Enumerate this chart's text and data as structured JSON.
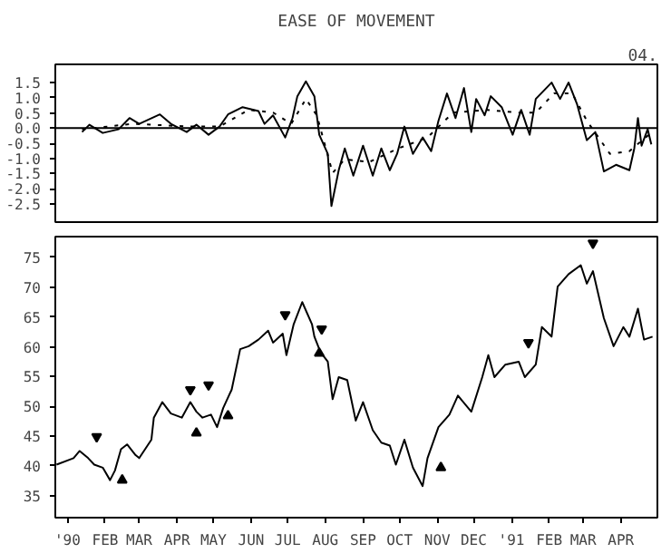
{
  "chart_data": [
    {
      "type": "line",
      "title": "EASE OF MOVEMENT",
      "annotations": [
        "04."
      ],
      "xlim": [
        "1989-12-22",
        "1991-05-01"
      ],
      "xticks": [
        {
          "value": "1990-01-01",
          "label": null
        },
        {
          "value": "1990-02-01",
          "label": null
        },
        {
          "value": "1990-03-01",
          "label": null
        },
        {
          "value": "1990-04-01",
          "label": null
        },
        {
          "value": "1990-05-01",
          "label": null
        },
        {
          "value": "1990-06-01",
          "label": null
        },
        {
          "value": "1990-07-01",
          "label": null
        },
        {
          "value": "1990-08-01",
          "label": null
        },
        {
          "value": "1990-09-01",
          "label": null
        },
        {
          "value": "1990-10-01",
          "label": null
        },
        {
          "value": "1990-11-01",
          "label": null
        },
        {
          "value": "1990-12-01",
          "label": null
        },
        {
          "value": "1991-01-01",
          "label": null
        },
        {
          "value": "1991-02-01",
          "label": null
        },
        {
          "value": "1991-03-01",
          "label": null
        },
        {
          "value": "1991-04-01",
          "label": null
        }
      ],
      "tick_labels": "y",
      "ylim": [
        -3.1,
        2.1
      ],
      "yticks": [
        {
          "value": 1.5,
          "label": "1.5"
        },
        {
          "value": 1,
          "label": "1.0"
        },
        {
          "value": 0.5,
          "label": "0.5"
        },
        {
          "value": 0,
          "label": "0.0"
        },
        {
          "value": -0.5,
          "label": "-0.5"
        },
        {
          "value": -1,
          "label": "-1.0"
        },
        {
          "value": -1.5,
          "label": "-1.5"
        },
        {
          "value": -2,
          "label": "-2.0"
        },
        {
          "value": -2.5,
          "label": "-2.5"
        }
      ],
      "grid": false,
      "ref_lines": [
        {
          "axis": "y",
          "value": 0,
          "color": "#000000"
        }
      ],
      "series": [
        {
          "color": "#000000",
          "line_style": "solid",
          "x": [
            "1990-01-13",
            "1990-01-19",
            "1990-01-30",
            "1990-02-12",
            "1990-02-21",
            "1990-03-01",
            "1990-03-18",
            "1990-03-27",
            "1990-04-09",
            "1990-04-17",
            "1990-04-27",
            "1990-05-06",
            "1990-05-13",
            "1990-05-25",
            "1990-06-07",
            "1990-06-12",
            "1990-06-19",
            "1990-06-29",
            "1990-07-05",
            "1990-07-09",
            "1990-07-16",
            "1990-07-23",
            "1990-07-27",
            "1990-08-03",
            "1990-08-06",
            "1990-08-12",
            "1990-08-17",
            "1990-08-24",
            "1990-09-01",
            "1990-09-09",
            "1990-09-16",
            "1990-09-23",
            "1990-09-29",
            "1990-10-05",
            "1990-10-12",
            "1990-10-20",
            "1990-10-27",
            "1990-11-02",
            "1990-11-09",
            "1990-11-16",
            "1990-11-23",
            "1990-11-29",
            "1990-12-03",
            "1990-12-10",
            "1990-12-15",
            "1990-12-24",
            "1991-01-02",
            "1991-01-09",
            "1991-01-16",
            "1991-01-21",
            "1991-02-03",
            "1991-02-10",
            "1991-02-17",
            "1991-02-24",
            "1991-03-04",
            "1991-03-11",
            "1991-03-18",
            "1991-03-28",
            "1991-04-08",
            "1991-04-12",
            "1991-04-15",
            "1991-04-18",
            "1991-04-23",
            "1991-04-26"
          ],
          "values": [
            -0.13,
            0.11,
            -0.16,
            -0.04,
            0.33,
            0.14,
            0.45,
            0.14,
            -0.13,
            0.11,
            -0.22,
            0.05,
            0.45,
            0.69,
            0.56,
            0.14,
            0.42,
            -0.31,
            0.33,
            1.05,
            1.54,
            1.05,
            -0.22,
            -0.85,
            -2.57,
            -1.39,
            -0.67,
            -1.57,
            -0.58,
            -1.57,
            -0.67,
            -1.39,
            -0.85,
            0.05,
            -0.85,
            -0.31,
            -0.76,
            0.24,
            1.14,
            0.33,
            1.32,
            -0.13,
            0.96,
            0.42,
            1.05,
            0.69,
            -0.22,
            0.6,
            -0.22,
            0.96,
            1.5,
            0.96,
            1.5,
            0.78,
            -0.4,
            -0.13,
            -1.43,
            -1.21,
            -1.39,
            -0.67,
            0.33,
            -0.58,
            -0.04,
            -0.54
          ]
        },
        {
          "color": "#000000",
          "line_style": "dotted",
          "x": [
            "1990-01-13",
            "1990-02-24",
            "1990-04-12",
            "1990-05-06",
            "1990-05-30",
            "1990-06-19",
            "1990-07-04",
            "1990-07-16",
            "1990-07-25",
            "1990-08-07",
            "1990-08-17",
            "1990-09-06",
            "1990-09-30",
            "1990-10-24",
            "1990-11-14",
            "1990-12-12",
            "1991-01-06",
            "1991-01-21",
            "1991-02-05",
            "1991-02-20",
            "1991-03-04",
            "1991-03-23",
            "1991-04-08",
            "1991-04-24"
          ],
          "values": [
            -0.04,
            0.14,
            0.05,
            0.05,
            0.6,
            0.51,
            0.14,
            0.96,
            0.42,
            -1.48,
            -1.03,
            -1.12,
            -0.67,
            -0.31,
            0.51,
            0.6,
            0.51,
            0.51,
            1.14,
            1.14,
            0.24,
            -0.85,
            -0.76,
            -0.22
          ]
        }
      ]
    },
    {
      "type": "line",
      "xlim": [
        "1989-12-22",
        "1991-05-01"
      ],
      "xticks": [
        {
          "value": "1990-01-01",
          "label": "'90"
        },
        {
          "value": "1990-02-01",
          "label": "FEB"
        },
        {
          "value": "1990-03-01",
          "label": "MAR"
        },
        {
          "value": "1990-04-01",
          "label": "APR"
        },
        {
          "value": "1990-05-01",
          "label": "MAY"
        },
        {
          "value": "1990-06-01",
          "label": "JUN"
        },
        {
          "value": "1990-07-01",
          "label": "JUL"
        },
        {
          "value": "1990-08-01",
          "label": "AUG"
        },
        {
          "value": "1990-09-01",
          "label": "SEP"
        },
        {
          "value": "1990-10-01",
          "label": "OCT"
        },
        {
          "value": "1990-11-01",
          "label": "NOV"
        },
        {
          "value": "1990-12-01",
          "label": "DEC"
        },
        {
          "value": "1991-01-01",
          "label": "'91"
        },
        {
          "value": "1991-02-01",
          "label": "FEB"
        },
        {
          "value": "1991-03-01",
          "label": "MAR"
        },
        {
          "value": "1991-04-01",
          "label": "APR"
        }
      ],
      "ylim": [
        31.3,
        78.5
      ],
      "yticks": [
        35,
        40,
        45,
        50,
        55,
        60,
        65,
        70,
        75
      ],
      "grid": false,
      "series": [
        {
          "color": "#000000",
          "line_style": "solid",
          "x": [
            "1989-12-23",
            "1990-01-06",
            "1990-01-11",
            "1990-01-18",
            "1990-01-23",
            "1990-01-30",
            "1990-02-05",
            "1990-02-09",
            "1990-02-14",
            "1990-02-19",
            "1990-02-26",
            "1990-03-01",
            "1990-03-11",
            "1990-03-13",
            "1990-03-20",
            "1990-03-27",
            "1990-04-05",
            "1990-04-12",
            "1990-04-17",
            "1990-04-22",
            "1990-04-29",
            "1990-05-04",
            "1990-05-09",
            "1990-05-16",
            "1990-05-23",
            "1990-05-30",
            "1990-06-07",
            "1990-06-15",
            "1990-06-19",
            "1990-06-27",
            "1990-06-30",
            "1990-07-06",
            "1990-07-13",
            "1990-07-21",
            "1990-07-23",
            "1990-07-28",
            "1990-08-03",
            "1990-08-07",
            "1990-08-12",
            "1990-08-19",
            "1990-08-26",
            "1990-09-01",
            "1990-09-09",
            "1990-09-16",
            "1990-09-23",
            "1990-09-28",
            "1990-10-05",
            "1990-10-12",
            "1990-10-20",
            "1990-10-24",
            "1990-11-02",
            "1990-11-11",
            "1990-11-18",
            "1990-11-29",
            "1990-12-08",
            "1990-12-13",
            "1990-12-18",
            "1990-12-27",
            "1991-01-07",
            "1991-01-12",
            "1991-01-21",
            "1991-01-26",
            "1991-02-03",
            "1991-02-08",
            "1991-02-17",
            "1991-02-27",
            "1991-03-04",
            "1991-03-09",
            "1991-03-18",
            "1991-03-26",
            "1991-04-03",
            "1991-04-08",
            "1991-04-15",
            "1991-04-20",
            "1991-04-27"
          ],
          "values": [
            40.2,
            41.3,
            42.5,
            41.3,
            40.2,
            39.7,
            37.6,
            39.2,
            42.8,
            43.6,
            41.8,
            41.3,
            44.4,
            48.1,
            50.7,
            48.8,
            48.1,
            50.7,
            49.1,
            48.1,
            48.6,
            46.5,
            49.7,
            52.8,
            59.6,
            60.1,
            61.2,
            62.7,
            60.7,
            62.2,
            58.6,
            63.8,
            67.5,
            63.8,
            61.7,
            59.1,
            57.5,
            51.2,
            54.9,
            54.4,
            47.6,
            50.7,
            46.0,
            43.9,
            43.4,
            40.2,
            44.4,
            39.7,
            36.6,
            41.3,
            46.5,
            48.6,
            51.8,
            49.1,
            54.9,
            58.6,
            54.9,
            57.0,
            57.5,
            54.9,
            57.0,
            63.3,
            61.7,
            70.1,
            72.2,
            73.7,
            70.6,
            72.7,
            64.8,
            60.1,
            63.3,
            61.7,
            66.4,
            61.2,
            61.7
          ]
        },
        {
          "type": "scatter",
          "marker": "triangle_down",
          "color": "#000000",
          "x": [
            "1990-01-25",
            "1990-04-12",
            "1990-04-27",
            "1990-06-29",
            "1990-07-29",
            "1991-01-15",
            "1991-03-09"
          ],
          "values": [
            44.9,
            52.8,
            53.6,
            65.4,
            63.0,
            60.7,
            77.4
          ]
        },
        {
          "type": "scatter",
          "marker": "triangle",
          "color": "#000000",
          "x": [
            "1990-02-15",
            "1990-04-17",
            "1990-05-13",
            "1990-07-27",
            "1990-11-04"
          ],
          "values": [
            37.6,
            45.5,
            48.4,
            58.9,
            39.7
          ]
        }
      ]
    }
  ]
}
